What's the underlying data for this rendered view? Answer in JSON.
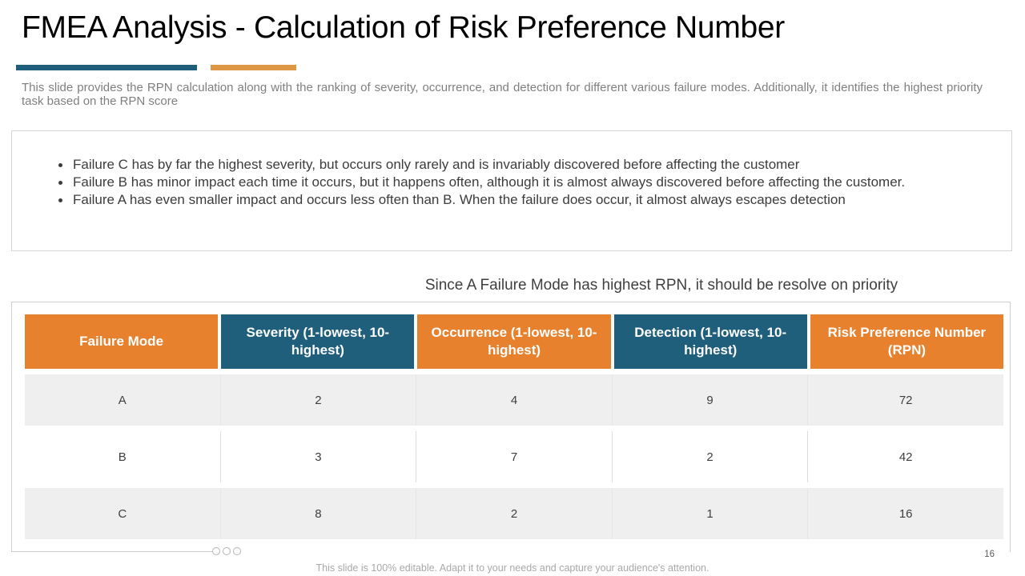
{
  "slide": {
    "title": "FMEA Analysis - Calculation of Risk Preference Number",
    "subtitle": "This slide provides the RPN calculation along with the ranking of severity, occurrence, and detection for different various failure modes. Additionally, it identifies the highest priority task based on the RPN score",
    "bullets": [
      "Failure C has by far the highest severity, but occurs only rarely and is invariably discovered before affecting the customer",
      "Failure B has minor impact each time it occurs, but it happens often, although it is almost always discovered before affecting the customer.",
      "Failure A has even smaller impact and occurs less often than B. When the failure does occur, it almost always escapes detection"
    ],
    "callout": "Since A Failure Mode has highest RPN, it should be resolve on priority",
    "footer": "This slide is 100% editable. Adapt it to your needs and capture your audience's attention.",
    "page_number": "16"
  },
  "table": {
    "columns": [
      {
        "label": "Failure Mode",
        "color": "orange"
      },
      {
        "label": "Severity (1-lowest, 10-highest)",
        "color": "teal"
      },
      {
        "label": "Occurrence (1-lowest, 10-highest)",
        "color": "orange"
      },
      {
        "label": "Detection (1-lowest, 10-highest)",
        "color": "teal"
      },
      {
        "label": "Risk Preference Number (RPN)",
        "color": "orange"
      }
    ],
    "rows": [
      {
        "cells": [
          "A",
          "2",
          "4",
          "9",
          "72"
        ]
      },
      {
        "cells": [
          "B",
          "3",
          "7",
          "2",
          "42"
        ]
      },
      {
        "cells": [
          "C",
          "8",
          "2",
          "1",
          "16"
        ]
      }
    ]
  },
  "colors": {
    "teal": "#1F5F7C",
    "orange": "#E7812D",
    "accent_orange_bar": "#DE9845",
    "row_alt": "#EFEFEF"
  }
}
